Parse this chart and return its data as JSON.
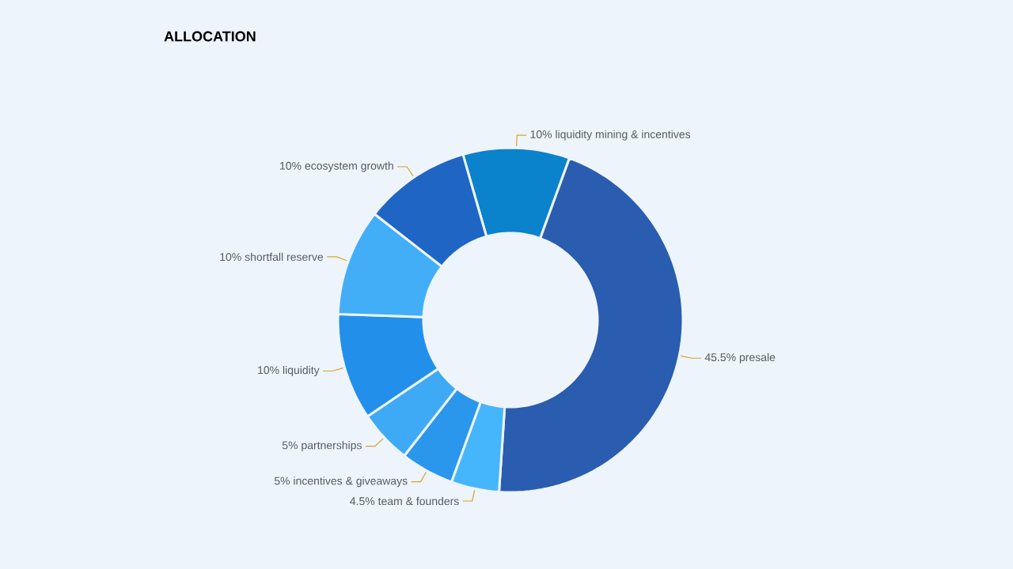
{
  "chart_data": {
    "type": "donut",
    "title": "ALLOCATION",
    "categories": [
      "liquidity mining & incentives",
      "presale",
      "team & founders",
      "incentives & giveaways",
      "partnerships",
      "liquidity",
      "shortfall reserve",
      "ecosystem growth"
    ],
    "values": [
      10,
      45.5,
      4.5,
      5,
      5,
      10,
      10,
      10
    ],
    "value_labels": [
      "10%",
      "45.5%",
      "4.5%",
      "5%",
      "5%",
      "10%",
      "10%",
      "10%"
    ],
    "colors": [
      "#0b82cc",
      "#2a5db0",
      "#46b6fc",
      "#2a96ec",
      "#3eaaf6",
      "#2290ea",
      "#42aef8",
      "#1f66c4"
    ]
  }
}
